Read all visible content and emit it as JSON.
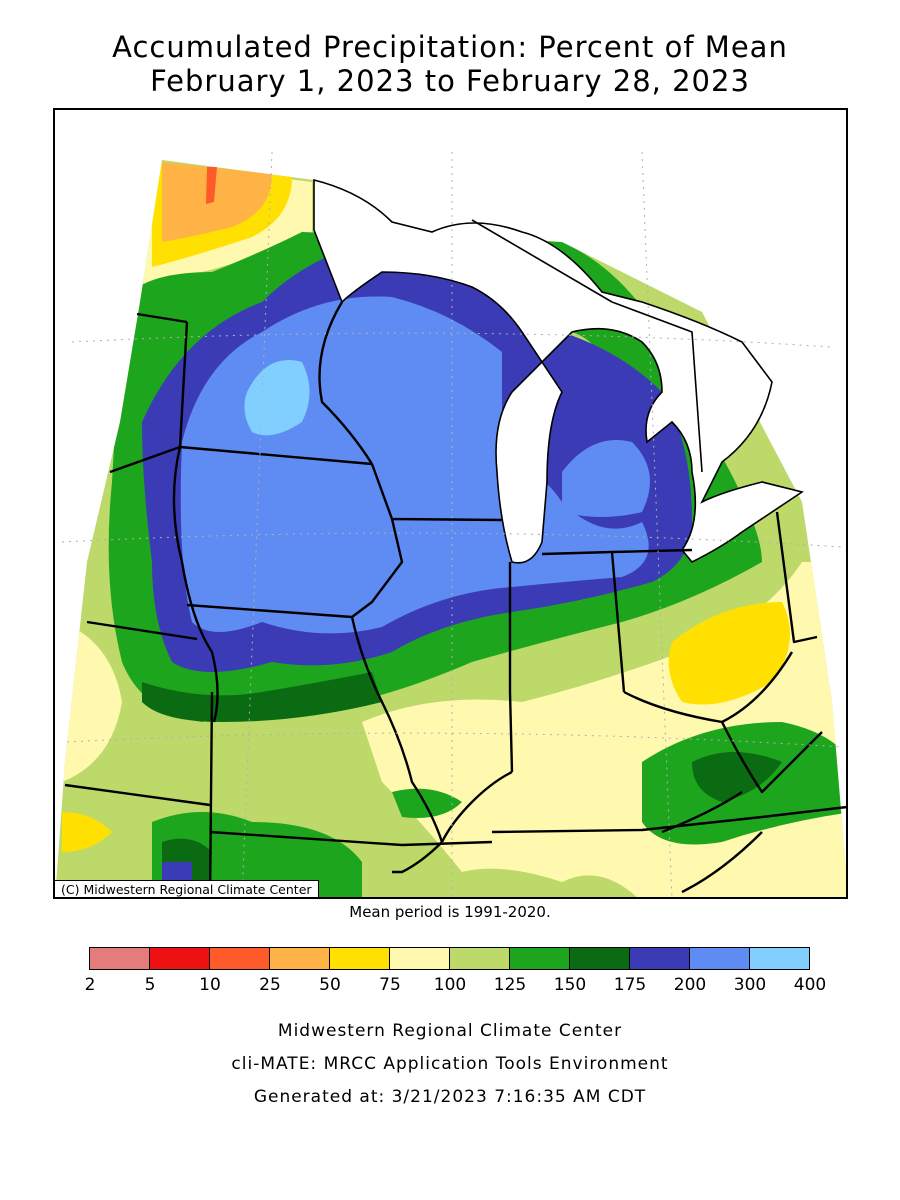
{
  "title": {
    "line1": "Accumulated Precipitation: Percent of Mean",
    "line2": "February 1, 2023 to February 28, 2023"
  },
  "map": {
    "credit": "(C) Midwestern Regional Climate Center",
    "mean_period": "Mean period is 1991-2020."
  },
  "legend": {
    "ticks": [
      "2",
      "5",
      "10",
      "25",
      "50",
      "75",
      "100",
      "125",
      "150",
      "175",
      "200",
      "300",
      "400"
    ],
    "colors": [
      "#e57b7b",
      "#ee1111",
      "#ff5a2a",
      "#ffb347",
      "#ffe000",
      "#fff9b0",
      "#bcd96a",
      "#1ea51e",
      "#0a6b12",
      "#3b3bb5",
      "#5f8cf2",
      "#80cfff"
    ]
  },
  "footer": {
    "line1": "Midwestern Regional Climate Center",
    "line2": "cli-MATE: MRCC Application Tools Environment",
    "line3": "Generated at: 3/21/2023 7:16:35 AM CDT"
  }
}
